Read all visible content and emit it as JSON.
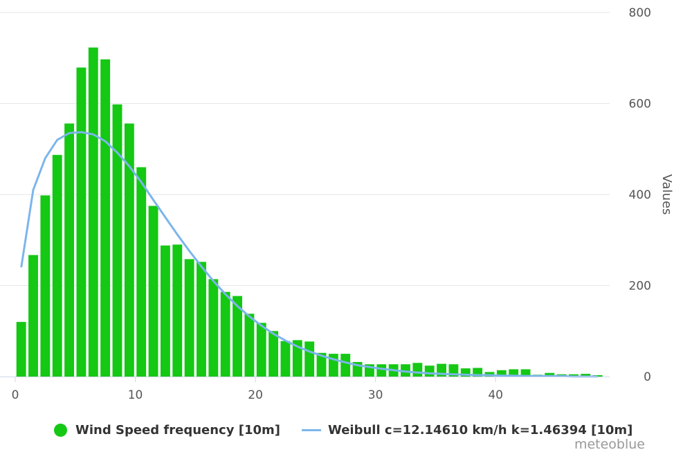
{
  "chart_data": {
    "type": "bar",
    "ylabel": "Values",
    "xlim": [
      0,
      49.5
    ],
    "ylim": [
      0,
      800
    ],
    "x_ticks": [
      "0",
      "10",
      "20",
      "30",
      "40"
    ],
    "y_ticks": [
      "0",
      "200",
      "400",
      "600",
      "800"
    ],
    "grid": true,
    "legend_position": "bottom",
    "x": [
      0.5,
      1.5,
      2.5,
      3.5,
      4.5,
      5.5,
      6.5,
      7.5,
      8.5,
      9.5,
      10.5,
      11.5,
      12.5,
      13.5,
      14.5,
      15.5,
      16.5,
      17.5,
      18.5,
      19.5,
      20.5,
      21.5,
      22.5,
      23.5,
      24.5,
      25.5,
      26.5,
      27.5,
      28.5,
      29.5,
      30.5,
      31.5,
      32.5,
      33.5,
      34.5,
      35.5,
      36.5,
      37.5,
      38.5,
      39.5,
      40.5,
      41.5,
      42.5,
      43.5,
      44.5,
      45.5,
      46.5,
      47.5,
      48.5
    ],
    "series": [
      {
        "name": "Wind Speed frequency [10m]",
        "kind": "bar",
        "color": "#14c814",
        "values": [
          120,
          267,
          398,
          487,
          556,
          679,
          723,
          697,
          598,
          556,
          460,
          375,
          288,
          290,
          258,
          252,
          214,
          186,
          177,
          138,
          118,
          100,
          78,
          80,
          77,
          52,
          50,
          50,
          32,
          27,
          27,
          27,
          27,
          30,
          24,
          28,
          27,
          18,
          19,
          10,
          14,
          16,
          16,
          4,
          8,
          5,
          5,
          6,
          3
        ]
      },
      {
        "name": "Weibull c=12.14610 km/h k=1.46394 [10m]",
        "kind": "line",
        "color": "#7cb5ec",
        "values": [
          240,
          410,
          480,
          520,
          535,
          537,
          532,
          517,
          492,
          462,
          427,
          388,
          350,
          312,
          276,
          242,
          210,
          181,
          155,
          132,
          112,
          94,
          79,
          66,
          55,
          46,
          38,
          31,
          25,
          21,
          17,
          14,
          11,
          9,
          7,
          6,
          5,
          4,
          3,
          3,
          2,
          2,
          1,
          1,
          1,
          1,
          0,
          0,
          0
        ]
      }
    ]
  },
  "credit": "meteoblue"
}
